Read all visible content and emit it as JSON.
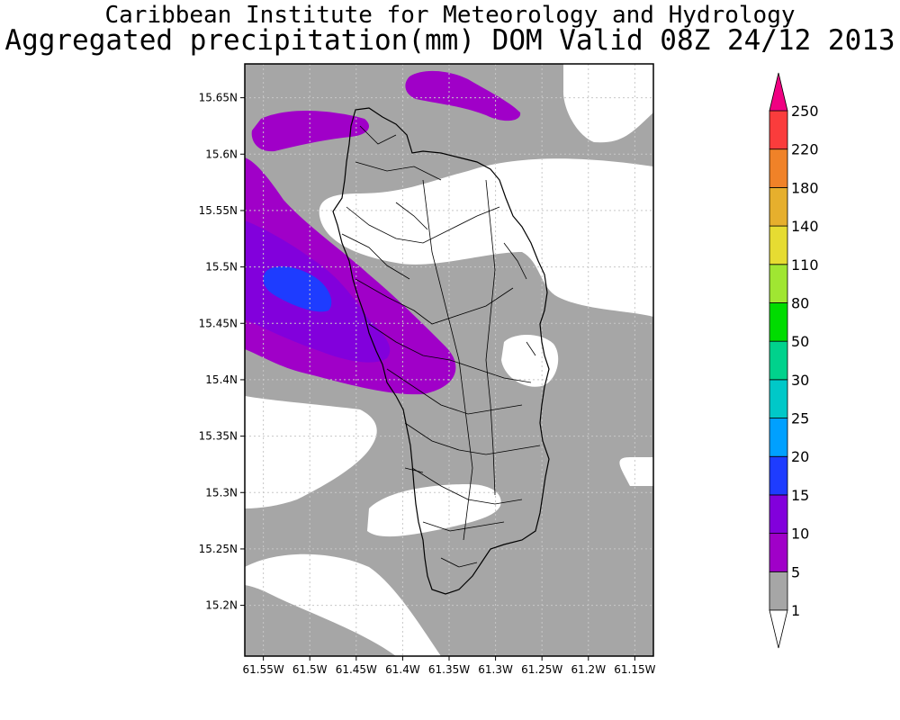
{
  "header": {
    "title": "Caribbean Institute for Meteorology and Hydrology",
    "subtitle": "Aggregated precipitation(mm) DOM Valid 08Z 24/12 2013"
  },
  "map": {
    "region": "Dominica",
    "lon_range": [
      -61.57,
      -61.13
    ],
    "lat_range": [
      15.155,
      15.68
    ],
    "x_ticks": [
      {
        "value": -61.55,
        "label": "61.55W"
      },
      {
        "value": -61.5,
        "label": "61.5W"
      },
      {
        "value": -61.45,
        "label": "61.45W"
      },
      {
        "value": -61.4,
        "label": "61.4W"
      },
      {
        "value": -61.35,
        "label": "61.35W"
      },
      {
        "value": -61.3,
        "label": "61.3W"
      },
      {
        "value": -61.25,
        "label": "61.25W"
      },
      {
        "value": -61.2,
        "label": "61.2W"
      },
      {
        "value": -61.15,
        "label": "61.15W"
      }
    ],
    "y_ticks": [
      {
        "value": 15.65,
        "label": "15.65N"
      },
      {
        "value": 15.6,
        "label": "15.6N"
      },
      {
        "value": 15.55,
        "label": "15.55N"
      },
      {
        "value": 15.5,
        "label": "15.5N"
      },
      {
        "value": 15.45,
        "label": "15.45N"
      },
      {
        "value": 15.4,
        "label": "15.4N"
      },
      {
        "value": 15.35,
        "label": "15.35N"
      },
      {
        "value": 15.3,
        "label": "15.3N"
      },
      {
        "value": 15.25,
        "label": "15.25N"
      },
      {
        "value": 15.2,
        "label": "15.2N"
      }
    ],
    "grid": "dotted"
  },
  "colorbar": {
    "units": "mm",
    "bins": [
      {
        "from": 1,
        "to": 5,
        "color": "#a6a6a6"
      },
      {
        "from": 5,
        "to": 10,
        "color": "#a000c8"
      },
      {
        "from": 10,
        "to": 15,
        "color": "#8200dc"
      },
      {
        "from": 15,
        "to": 20,
        "color": "#1e3cff"
      },
      {
        "from": 20,
        "to": 25,
        "color": "#00a0ff"
      },
      {
        "from": 25,
        "to": 30,
        "color": "#00c8c8"
      },
      {
        "from": 30,
        "to": 50,
        "color": "#00d28c"
      },
      {
        "from": 50,
        "to": 80,
        "color": "#00dc00"
      },
      {
        "from": 80,
        "to": 110,
        "color": "#a0e632"
      },
      {
        "from": 110,
        "to": 140,
        "color": "#e6dc32"
      },
      {
        "from": 140,
        "to": 180,
        "color": "#e6af2d"
      },
      {
        "from": 180,
        "to": 220,
        "color": "#f08228"
      },
      {
        "from": 220,
        "to": 250,
        "color": "#fa3c3c"
      },
      {
        "from": 250,
        "to": null,
        "color": "#f00082"
      }
    ],
    "labels": [
      "1",
      "5",
      "10",
      "15",
      "20",
      "25",
      "30",
      "50",
      "80",
      "110",
      "140",
      "180",
      "220",
      "250"
    ]
  },
  "precipitation_fields": {
    "above_1mm": "grey shading over most of the domain",
    "max_region": "15-20 mm near 15.48N 61.53W off the west coast"
  }
}
